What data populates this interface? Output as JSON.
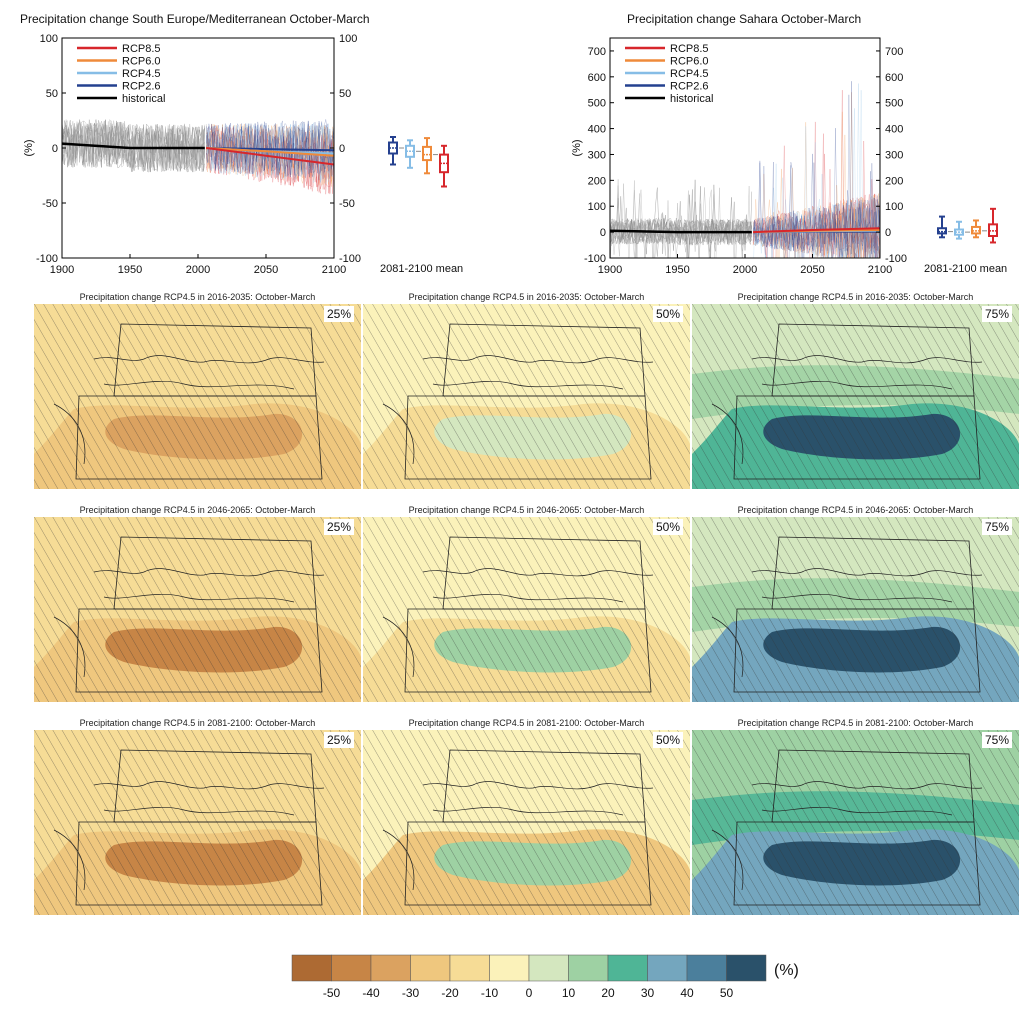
{
  "top_charts": [
    {
      "title": "Precipitation change South Europe/Mediterranean October-March",
      "ylabel": "(%)",
      "xlim": [
        1900,
        2100
      ],
      "ylim": [
        -100,
        100
      ],
      "xticks": [
        "1900",
        "1950",
        "2000",
        "2050",
        "2100"
      ],
      "yticks_left": [
        "100",
        "50",
        "0",
        "-50",
        "-100"
      ],
      "yticks_right": [
        "100",
        "50",
        "0",
        "-50",
        "-100"
      ],
      "boxplot_label": "2081-2100 mean"
    },
    {
      "title": "Precipitation change Sahara October-March",
      "ylabel": "(%)",
      "xlim": [
        1900,
        2100
      ],
      "ylim": [
        -100,
        750
      ],
      "xticks": [
        "1900",
        "1950",
        "2000",
        "2050",
        "2100"
      ],
      "yticks_left": [
        "700",
        "600",
        "500",
        "400",
        "300",
        "200",
        "100",
        "0",
        "-100"
      ],
      "yticks_right": [
        "700",
        "600",
        "500",
        "400",
        "300",
        "200",
        "100",
        "0",
        "-100"
      ],
      "boxplot_label": "2081-2100 mean"
    }
  ],
  "legend": [
    {
      "name": "RCP8.5",
      "color": "#d7262b"
    },
    {
      "name": "RCP6.0",
      "color": "#ef8a3a"
    },
    {
      "name": "RCP4.5",
      "color": "#86bde6"
    },
    {
      "name": "RCP2.6",
      "color": "#24408f"
    },
    {
      "name": "historical",
      "color": "#000000"
    }
  ],
  "maps": {
    "titles": [
      "Precipitation change RCP4.5 in 2016-2035: October-March",
      "Precipitation change RCP4.5 in 2046-2065: October-March",
      "Precipitation change RCP4.5 in 2081-2100: October-March"
    ],
    "percentiles": [
      "25%",
      "50%",
      "75%"
    ]
  },
  "colorbar": {
    "unit": "(%)",
    "ticks": [
      "-50",
      "-40",
      "-30",
      "-20",
      "-10",
      "0",
      "10",
      "20",
      "30",
      "40",
      "50"
    ],
    "colors": [
      "#ad6a33",
      "#c78546",
      "#dba260",
      "#efc77e",
      "#f6dc96",
      "#fbf2ba",
      "#d4e7bf",
      "#9ed1a3",
      "#4fb596",
      "#74a6be",
      "#4b7f9c",
      "#2a516a"
    ]
  },
  "chart_data": [
    {
      "type": "line",
      "title": "Precipitation change South Europe/Mediterranean October-March",
      "ylabel": "(%)",
      "xlim": [
        1900,
        2100
      ],
      "ylim": [
        -100,
        100
      ],
      "series": [
        {
          "name": "historical",
          "x": [
            1900,
            1950,
            2005
          ],
          "y": [
            4,
            0,
            0
          ]
        },
        {
          "name": "RCP2.6",
          "x": [
            2006,
            2050,
            2100
          ],
          "y": [
            0,
            -1,
            -2
          ]
        },
        {
          "name": "RCP4.5",
          "x": [
            2006,
            2050,
            2100
          ],
          "y": [
            0,
            -3,
            -5
          ]
        },
        {
          "name": "RCP6.0",
          "x": [
            2006,
            2050,
            2100
          ],
          "y": [
            0,
            -3,
            -7
          ]
        },
        {
          "name": "RCP8.5",
          "x": [
            2006,
            2050,
            2100
          ],
          "y": [
            0,
            -7,
            -15
          ]
        }
      ],
      "boxplots_2081_2100_mean": [
        {
          "name": "RCP2.6",
          "min": -15,
          "q1": -5,
          "median": 0,
          "q3": 5,
          "max": 10
        },
        {
          "name": "RCP4.5",
          "min": -18,
          "q1": -8,
          "median": -3,
          "q3": 2,
          "max": 7
        },
        {
          "name": "RCP6.0",
          "min": -23,
          "q1": -11,
          "median": -6,
          "q3": 1,
          "max": 9
        },
        {
          "name": "RCP8.5",
          "min": -35,
          "q1": -22,
          "median": -14,
          "q3": -6,
          "max": 2
        }
      ]
    },
    {
      "type": "line",
      "title": "Precipitation change Sahara October-March",
      "ylabel": "(%)",
      "xlim": [
        1900,
        2100
      ],
      "ylim": [
        -100,
        750
      ],
      "series": [
        {
          "name": "historical",
          "x": [
            1900,
            1950,
            2005
          ],
          "y": [
            5,
            0,
            0
          ]
        },
        {
          "name": "RCP2.6",
          "x": [
            2006,
            2050,
            2100
          ],
          "y": [
            0,
            2,
            2
          ]
        },
        {
          "name": "RCP4.5",
          "x": [
            2006,
            2050,
            2100
          ],
          "y": [
            0,
            3,
            5
          ]
        },
        {
          "name": "RCP6.0",
          "x": [
            2006,
            2050,
            2100
          ],
          "y": [
            0,
            5,
            8
          ]
        },
        {
          "name": "RCP8.5",
          "x": [
            2006,
            2050,
            2100
          ],
          "y": [
            0,
            8,
            15
          ]
        }
      ],
      "boxplots_2081_2100_mean": [
        {
          "name": "RCP2.6",
          "min": -20,
          "q1": -5,
          "median": 2,
          "q3": 15,
          "max": 60
        },
        {
          "name": "RCP4.5",
          "min": -25,
          "q1": -10,
          "median": 0,
          "q3": 10,
          "max": 40
        },
        {
          "name": "RCP6.0",
          "min": -20,
          "q1": -5,
          "median": 5,
          "q3": 20,
          "max": 45
        },
        {
          "name": "RCP8.5",
          "min": -40,
          "q1": -15,
          "median": 5,
          "q3": 30,
          "max": 90
        }
      ]
    }
  ]
}
